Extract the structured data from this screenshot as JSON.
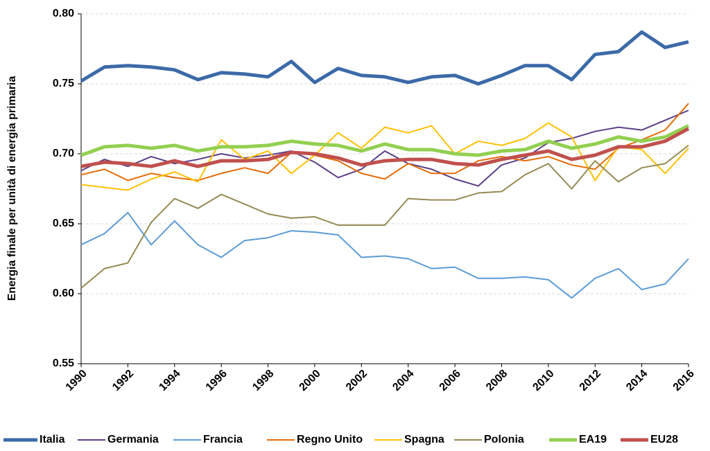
{
  "chart_data": {
    "type": "line",
    "y_label": "Energia finale per unità di energia primaria",
    "x": [
      1990,
      1991,
      1992,
      1993,
      1994,
      1995,
      1996,
      1997,
      1998,
      1999,
      2000,
      2001,
      2002,
      2003,
      2004,
      2005,
      2006,
      2007,
      2008,
      2009,
      2010,
      2011,
      2012,
      2013,
      2014,
      2015,
      2016
    ],
    "xlim": [
      1990,
      2016
    ],
    "xticks": [
      1990,
      1992,
      1994,
      1996,
      1998,
      2000,
      2002,
      2004,
      2006,
      2008,
      2010,
      2012,
      2014,
      2016
    ],
    "ylim": [
      0.55,
      0.8
    ],
    "yticks": [
      0.55,
      {
        "value": 0.6,
        "label": "0.60"
      },
      0.65,
      {
        "value": 0.7,
        "label": "0.70"
      },
      0.75,
      {
        "value": 0.8,
        "label": "0.80"
      }
    ],
    "grid": true,
    "legend": "bottom",
    "series": [
      {
        "name": "Italia",
        "color": "#3c6aa8",
        "linewidth": 5,
        "values": [
          0.752,
          0.762,
          0.763,
          0.762,
          0.76,
          0.753,
          0.758,
          0.757,
          0.755,
          0.766,
          0.751,
          0.761,
          0.756,
          0.755,
          0.751,
          0.755,
          0.756,
          0.75,
          0.756,
          0.763,
          0.763,
          0.753,
          0.771,
          0.773,
          0.787,
          0.776,
          0.78
        ]
      },
      {
        "name": "Germania",
        "color": "#5b3f87",
        "linewidth": 2,
        "values": [
          0.688,
          0.696,
          0.691,
          0.698,
          0.693,
          0.696,
          0.7,
          0.697,
          0.699,
          0.702,
          0.694,
          0.683,
          0.689,
          0.702,
          0.693,
          0.689,
          0.682,
          0.677,
          0.692,
          0.697,
          0.708,
          0.711,
          0.716,
          0.719,
          0.717,
          0.724,
          0.731
        ]
      },
      {
        "name": "Francia",
        "color": "#5b9bd5",
        "linewidth": 2,
        "values": [
          0.635,
          0.643,
          0.658,
          0.635,
          0.652,
          0.635,
          0.626,
          0.638,
          0.64,
          0.645,
          0.644,
          0.642,
          0.626,
          0.627,
          0.625,
          0.618,
          0.619,
          0.611,
          0.611,
          0.612,
          0.61,
          0.597,
          0.611,
          0.618,
          0.603,
          0.607,
          0.625
        ]
      },
      {
        "name": "Regno Unito",
        "color": "#e46c0a",
        "linewidth": 2,
        "values": [
          0.685,
          0.689,
          0.681,
          0.686,
          0.683,
          0.681,
          0.686,
          0.69,
          0.686,
          0.701,
          0.699,
          0.695,
          0.686,
          0.682,
          0.693,
          0.686,
          0.686,
          0.695,
          0.698,
          0.695,
          0.698,
          0.692,
          0.689,
          0.704,
          0.71,
          0.717,
          0.736
        ]
      },
      {
        "name": "Spagna",
        "color": "#ffc000",
        "linewidth": 2,
        "values": [
          0.678,
          0.676,
          0.674,
          0.682,
          0.687,
          0.68,
          0.71,
          0.696,
          0.702,
          0.686,
          0.699,
          0.715,
          0.704,
          0.719,
          0.715,
          0.72,
          0.7,
          0.709,
          0.706,
          0.711,
          0.722,
          0.712,
          0.681,
          0.705,
          0.703,
          0.686,
          0.704
        ]
      },
      {
        "name": "Polonia",
        "color": "#948a54",
        "linewidth": 2,
        "values": [
          0.604,
          0.618,
          0.622,
          0.651,
          0.668,
          0.661,
          0.671,
          0.664,
          0.657,
          0.654,
          0.655,
          0.649,
          0.649,
          0.649,
          0.668,
          0.667,
          0.667,
          0.672,
          0.673,
          0.685,
          0.693,
          0.675,
          0.695,
          0.68,
          0.69,
          0.693,
          0.706
        ]
      },
      {
        "name": "EA19",
        "color": "#92d050",
        "linewidth": 5,
        "values": [
          0.699,
          0.705,
          0.706,
          0.704,
          0.706,
          0.702,
          0.705,
          0.705,
          0.706,
          0.709,
          0.707,
          0.706,
          0.702,
          0.707,
          0.703,
          0.703,
          0.7,
          0.699,
          0.702,
          0.703,
          0.709,
          0.704,
          0.707,
          0.712,
          0.709,
          0.712,
          0.72
        ]
      },
      {
        "name": "EU28",
        "color": "#c0504d",
        "linewidth": 5,
        "values": [
          0.691,
          0.694,
          0.693,
          0.691,
          0.695,
          0.691,
          0.695,
          0.695,
          0.696,
          0.701,
          0.7,
          0.697,
          0.692,
          0.695,
          0.696,
          0.696,
          0.693,
          0.692,
          0.696,
          0.699,
          0.702,
          0.696,
          0.699,
          0.705,
          0.705,
          0.709,
          0.718
        ]
      }
    ]
  }
}
